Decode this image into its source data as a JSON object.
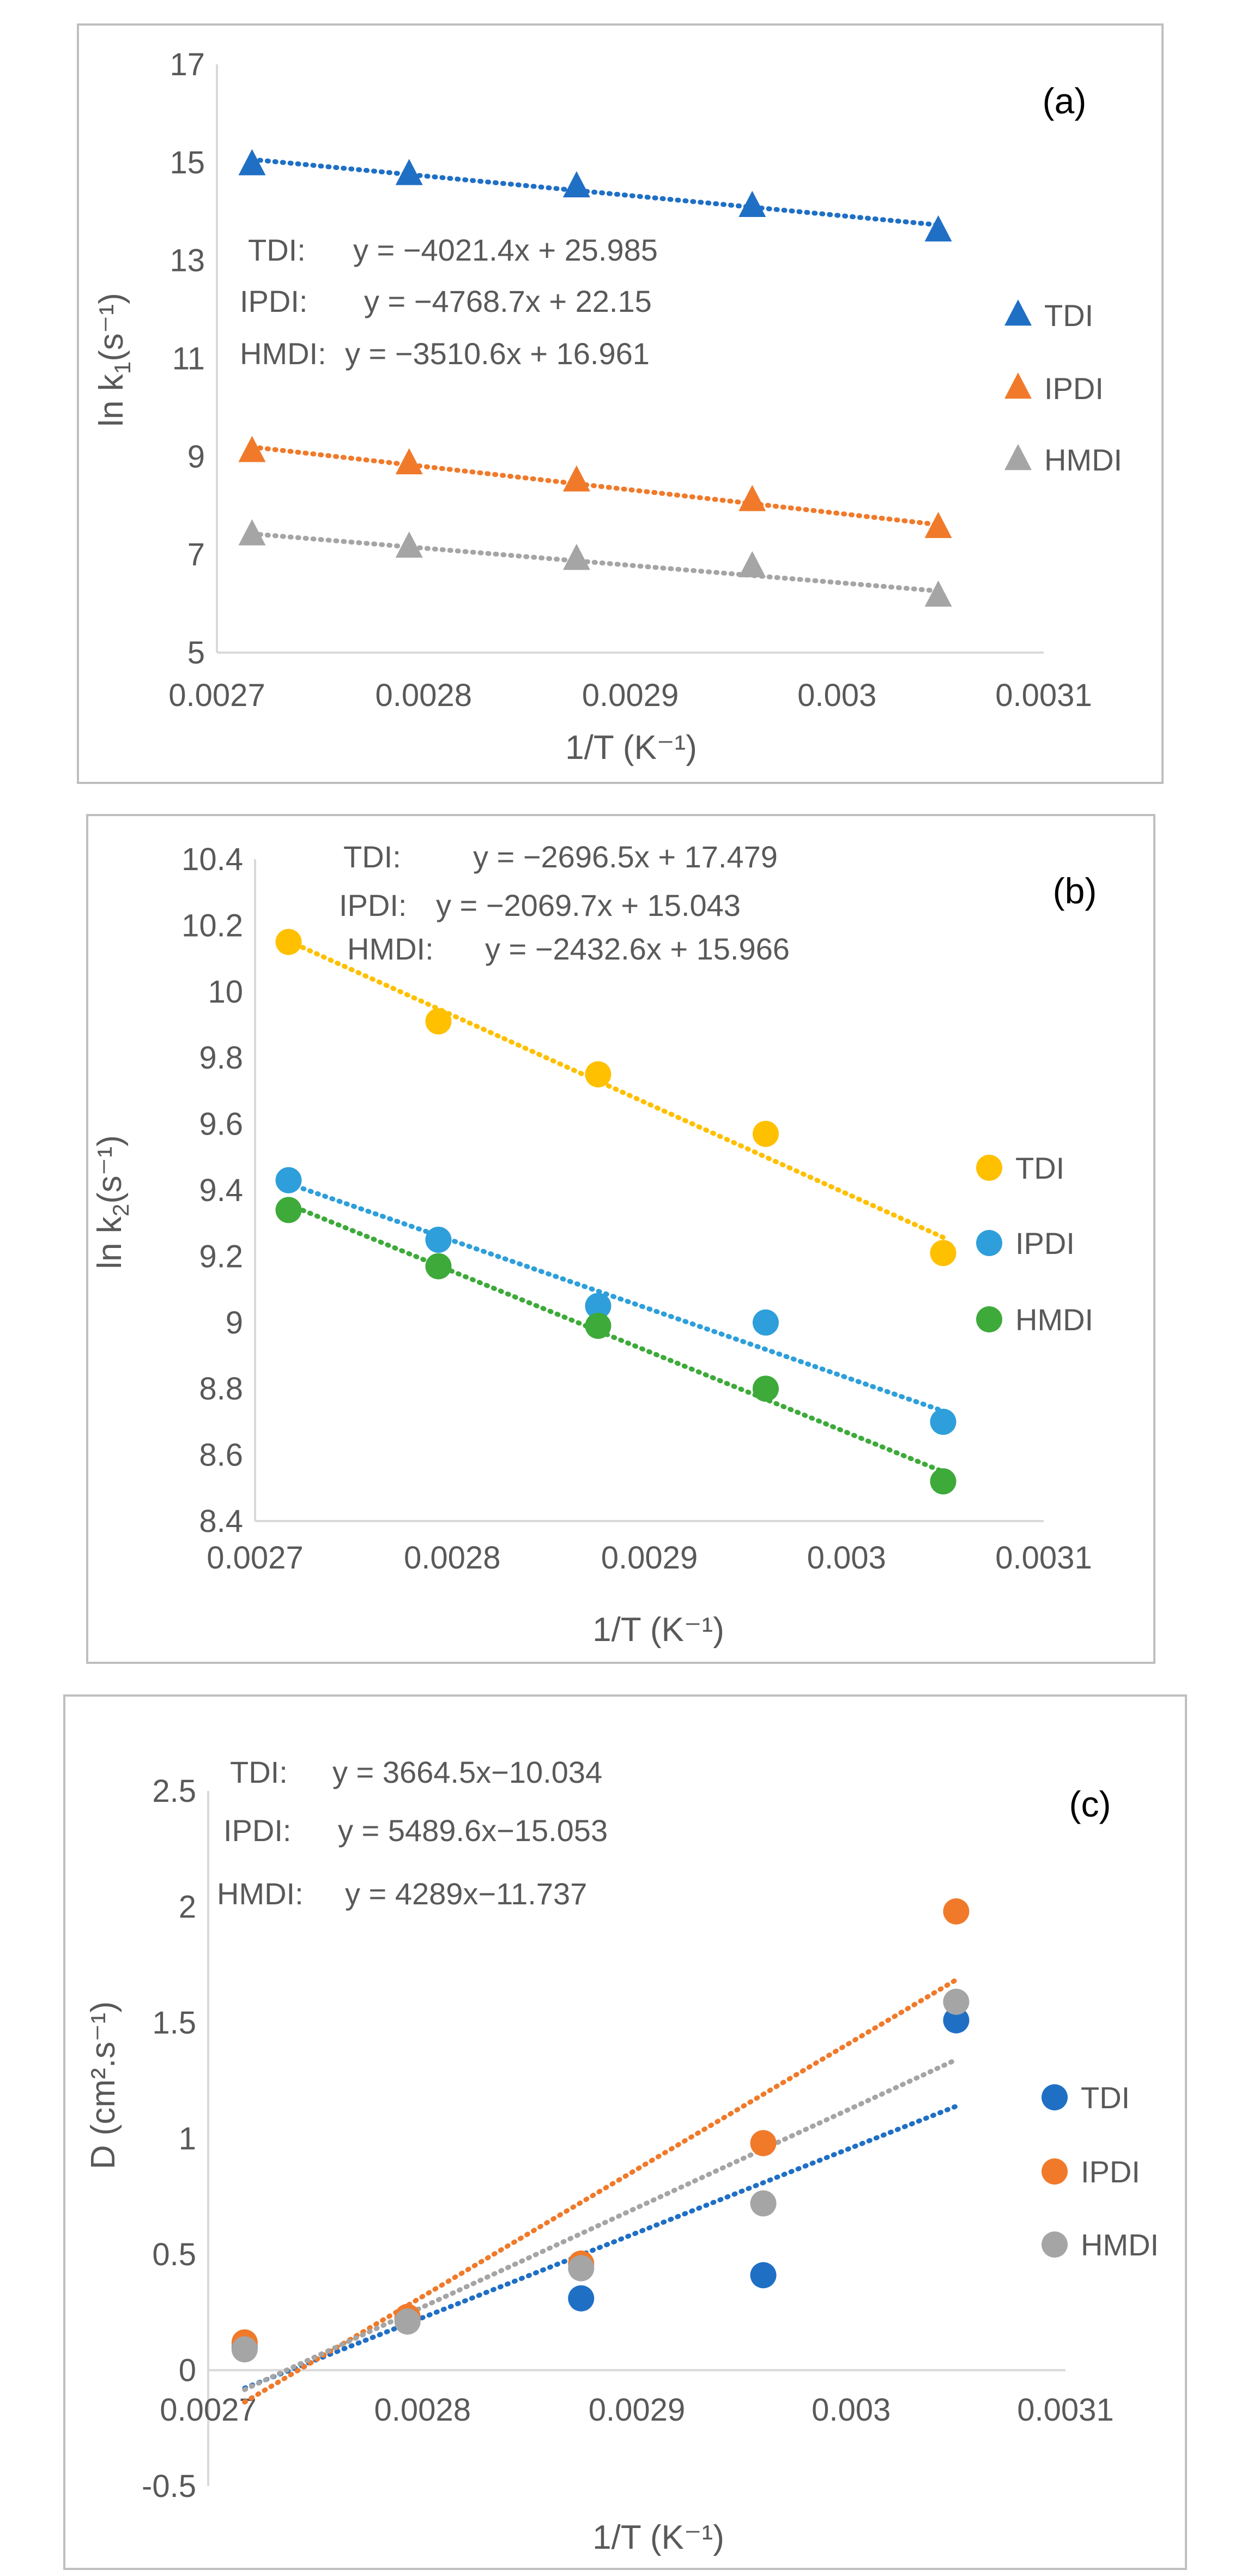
{
  "chart_data": [
    {
      "type": "scatter",
      "panel_label": "(a)",
      "xlabel": "1/T (K⁻¹)",
      "ylabel_main": "ln k",
      "ylabel_sub": "1",
      "ylabel_unit": "(s⁻¹)",
      "xlim": [
        0.0027,
        0.0031
      ],
      "ylim": [
        5,
        17
      ],
      "x_ticks": [
        "0.0027",
        "0.0028",
        "0.0029",
        "0.003",
        "0.0031"
      ],
      "y_ticks": [
        "5",
        "7",
        "9",
        "11",
        "13",
        "15",
        "17"
      ],
      "grid": false,
      "marker": "triangle",
      "trendline": "linear, dotted",
      "legend_position": "right",
      "equations": [
        {
          "label": "TDI:",
          "eq": "y = −4021.4x + 25.985"
        },
        {
          "label": "IPDI:",
          "eq": "y = −4768.7x + 22.15"
        },
        {
          "label": "HMDI:",
          "eq": "y = −3510.6x + 16.961"
        }
      ],
      "x": [
        0.002717,
        0.002793,
        0.002874,
        0.002959,
        0.003049
      ],
      "series": [
        {
          "name": "TDI",
          "color": "#1F6FC5",
          "values": [
            14.95,
            14.75,
            14.5,
            14.1,
            13.6
          ],
          "fit": [
            -4021.4,
            25.985
          ]
        },
        {
          "name": "IPDI",
          "color": "#F07A2A",
          "values": [
            9.1,
            8.85,
            8.5,
            8.1,
            7.55
          ],
          "fit": [
            -4768.7,
            22.15
          ]
        },
        {
          "name": "HMDI",
          "color": "#A5A5A5",
          "values": [
            7.4,
            7.15,
            6.9,
            6.75,
            6.15
          ],
          "fit": [
            -3510.6,
            16.961
          ]
        }
      ]
    },
    {
      "type": "scatter",
      "panel_label": "(b)",
      "xlabel": "1/T (K⁻¹)",
      "ylabel_main": "ln k",
      "ylabel_sub": "2",
      "ylabel_unit": "(s⁻¹)",
      "xlim": [
        0.0027,
        0.0031
      ],
      "ylim": [
        8.4,
        10.4
      ],
      "x_ticks": [
        "0.0027",
        "0.0028",
        "0.0029",
        "0.003",
        "0.0031"
      ],
      "y_ticks": [
        "8.4",
        "8.6",
        "8.8",
        "9",
        "9.2",
        "9.4",
        "9.6",
        "9.8",
        "10",
        "10.2",
        "10.4"
      ],
      "grid": false,
      "marker": "circle",
      "trendline": "linear, dotted",
      "legend_position": "right",
      "equations": [
        {
          "label": "TDI:",
          "eq": "y = −2696.5x + 17.479"
        },
        {
          "label": "IPDI:",
          "eq": "y = −2069.7x + 15.043"
        },
        {
          "label": "HMDI:",
          "eq": "y = −2432.6x + 15.966"
        }
      ],
      "x": [
        0.002717,
        0.002793,
        0.002874,
        0.002959,
        0.003049
      ],
      "series": [
        {
          "name": "TDI",
          "color": "#FFC000",
          "values": [
            10.15,
            9.91,
            9.75,
            9.57,
            9.21
          ],
          "fit": [
            -2696.5,
            17.479
          ]
        },
        {
          "name": "IPDI",
          "color": "#2E9FDA",
          "values": [
            9.43,
            9.25,
            9.05,
            9.0,
            8.7
          ],
          "fit": [
            -2069.7,
            15.043
          ]
        },
        {
          "name": "HMDI",
          "color": "#3DAA3A",
          "values": [
            9.34,
            9.17,
            8.99,
            8.8,
            8.52
          ],
          "fit": [
            -2432.6,
            15.966
          ]
        }
      ]
    },
    {
      "type": "scatter",
      "panel_label": "(c)",
      "xlabel": "1/T (K⁻¹)",
      "ylabel_main": "D (cm².s⁻¹)",
      "ylabel_sub": "",
      "ylabel_unit": "",
      "xlim": [
        0.0027,
        0.0031
      ],
      "ylim": [
        -0.5,
        2.5
      ],
      "x_ticks": [
        "0.0027",
        "0.0028",
        "0.0029",
        "0.003",
        "0.0031"
      ],
      "y_ticks": [
        "-0.5",
        "0",
        "0.5",
        "1",
        "1.5",
        "2",
        "2.5"
      ],
      "grid": false,
      "marker": "circle",
      "trendline": "linear, dotted",
      "legend_position": "right",
      "equations": [
        {
          "label": "TDI:",
          "eq": "y = 3664.5x−10.034"
        },
        {
          "label": "IPDI:",
          "eq": "y = 5489.6x−15.053"
        },
        {
          "label": "HMDI:",
          "eq": "y = 4289x−11.737"
        }
      ],
      "x": [
        0.002717,
        0.002793,
        0.002874,
        0.002959,
        0.003049
      ],
      "series": [
        {
          "name": "TDI",
          "color": "#1F6FC5",
          "values": [
            0.1,
            0.22,
            0.31,
            0.41,
            1.51
          ],
          "fit": [
            3664.5,
            -10.034
          ]
        },
        {
          "name": "IPDI",
          "color": "#F07A2A",
          "values": [
            0.12,
            0.23,
            0.46,
            0.98,
            1.98
          ],
          "fit": [
            5489.6,
            -15.053
          ]
        },
        {
          "name": "HMDI",
          "color": "#A5A5A5",
          "values": [
            0.09,
            0.21,
            0.44,
            0.72,
            1.59
          ],
          "fit": [
            4289,
            -11.737
          ]
        }
      ]
    }
  ]
}
